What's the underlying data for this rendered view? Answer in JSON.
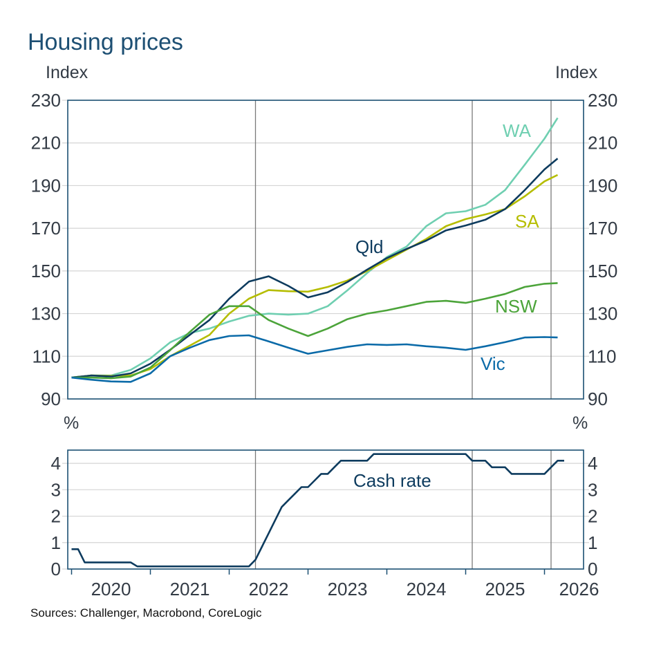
{
  "title": "Housing prices",
  "sources": "Sources: Challenger, Macrobond, CoreLogic",
  "xticks": [
    "2020",
    "2021",
    "2022",
    "2023",
    "2024",
    "2025",
    "2026"
  ],
  "colors": {
    "title": "#1d4f73",
    "frame": "#1b4f72",
    "grid": "#d4d4d4",
    "event_line": "#7a7a7a"
  },
  "chart_data": [
    {
      "type": "line",
      "title": "Housing prices",
      "ylabel_left": "Index",
      "ylabel_right": "Index",
      "ylim": [
        90,
        230
      ],
      "yticks": [
        "90",
        "110",
        "130",
        "150",
        "170",
        "190",
        "210",
        "230"
      ],
      "grid": true,
      "vertical_lines": [
        "2022-05",
        "2025-02",
        "2026-02"
      ],
      "x": [
        "2020-01",
        "2020-04",
        "2020-07",
        "2020-10",
        "2021-01",
        "2021-04",
        "2021-07",
        "2021-10",
        "2022-01",
        "2022-04",
        "2022-07",
        "2022-10",
        "2023-01",
        "2023-04",
        "2023-07",
        "2023-10",
        "2024-01",
        "2024-04",
        "2024-07",
        "2024-10",
        "2025-01",
        "2025-04",
        "2025-07",
        "2025-10",
        "2026-01",
        "2026-03"
      ],
      "series": [
        {
          "name": "WA",
          "color": "#6fcfb1",
          "values": [
            100,
            101,
            101,
            103.6,
            109,
            116.5,
            120.9,
            123,
            126.3,
            129,
            130,
            129.5,
            130,
            133.5,
            140.9,
            149,
            156.5,
            161.4,
            171,
            177,
            178,
            181,
            187.9,
            199.8,
            212,
            221.7
          ]
        },
        {
          "name": "SA",
          "color": "#b5bd00",
          "values": [
            100,
            101,
            100.8,
            101,
            104,
            110,
            115,
            120,
            130,
            137,
            141,
            140.5,
            140.3,
            142.5,
            145.5,
            150,
            155,
            160,
            165,
            171,
            174.3,
            176.5,
            179,
            185,
            192,
            195
          ]
        },
        {
          "name": "Qld",
          "color": "#0d3b5e",
          "values": [
            100,
            101,
            100.5,
            102,
            106.5,
            113,
            120,
            127,
            137,
            145,
            147.5,
            143,
            137.6,
            140,
            144.8,
            150.6,
            156,
            160.3,
            164.2,
            169,
            171.3,
            174,
            179,
            187.9,
            197.6,
            202.7
          ]
        },
        {
          "name": "NSW",
          "color": "#4ca43a",
          "values": [
            100,
            100,
            99.7,
            100.5,
            104.7,
            112.8,
            121.4,
            129.5,
            133.5,
            133.5,
            127,
            123,
            119.5,
            123,
            127.4,
            130,
            131.5,
            133.5,
            135.5,
            136,
            135,
            137,
            139.2,
            142.5,
            144,
            144.3
          ]
        },
        {
          "name": "Vic",
          "color": "#0a6aa8",
          "values": [
            100,
            99,
            98.2,
            98,
            102,
            110,
            114,
            117.6,
            119.5,
            119.8,
            117,
            114,
            111.2,
            112.8,
            114.4,
            115.6,
            115.3,
            115.6,
            114.7,
            114,
            113,
            114.7,
            116.6,
            118.8,
            119,
            118.8
          ]
        }
      ]
    },
    {
      "type": "line",
      "ylabel_left": "%",
      "ylabel_right": "%",
      "ylim": [
        0,
        4.5
      ],
      "yticks": [
        "0",
        "1",
        "2",
        "3",
        "4"
      ],
      "grid": true,
      "vertical_lines": [
        "2022-05",
        "2025-02",
        "2026-02"
      ],
      "x_start": "2020-01",
      "x_frequency": "monthly",
      "series": [
        {
          "name": "Cash rate",
          "color": "#0d3b5e",
          "values": [
            0.75,
            0.75,
            0.25,
            0.25,
            0.25,
            0.25,
            0.25,
            0.25,
            0.25,
            0.25,
            0.1,
            0.1,
            0.1,
            0.1,
            0.1,
            0.1,
            0.1,
            0.1,
            0.1,
            0.1,
            0.1,
            0.1,
            0.1,
            0.1,
            0.1,
            0.1,
            0.1,
            0.1,
            0.35,
            0.85,
            1.35,
            1.85,
            2.35,
            2.6,
            2.85,
            3.1,
            3.1,
            3.35,
            3.6,
            3.6,
            3.85,
            4.1,
            4.1,
            4.1,
            4.1,
            4.1,
            4.35,
            4.35,
            4.35,
            4.35,
            4.35,
            4.35,
            4.35,
            4.35,
            4.35,
            4.35,
            4.35,
            4.35,
            4.35,
            4.35,
            4.35,
            4.1,
            4.1,
            4.1,
            3.85,
            3.85,
            3.85,
            3.6,
            3.6,
            3.6,
            3.6,
            3.6,
            3.6,
            3.85,
            4.1,
            4.1
          ]
        }
      ]
    }
  ]
}
